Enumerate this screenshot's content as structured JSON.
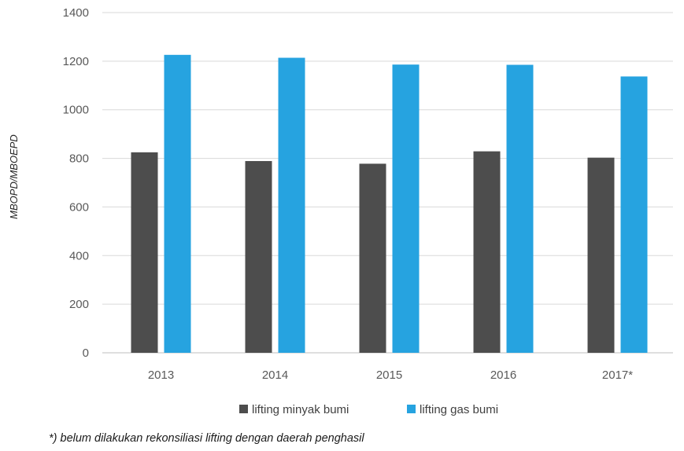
{
  "chart_data": {
    "type": "bar",
    "categories": [
      "2013",
      "2014",
      "2015",
      "2016",
      "2017*"
    ],
    "series": [
      {
        "name": "lifting minyak bumi",
        "color": "#4d4d4d",
        "values": [
          825,
          789,
          778,
          829,
          803
        ]
      },
      {
        "name": "lifting gas bumi",
        "color": "#26a3e0",
        "values": [
          1226,
          1214,
          1186,
          1185,
          1137
        ]
      }
    ],
    "ylabel": "MBOPD/MBOEPD",
    "xlabel": "",
    "ylim": [
      0,
      1400
    ],
    "yticks": [
      0,
      200,
      400,
      600,
      800,
      1000,
      1200,
      1400
    ],
    "grid": true,
    "legend_position": "bottom",
    "footnote": "*) belum dilakukan rekonsiliasi lifting dengan daerah penghasil"
  }
}
